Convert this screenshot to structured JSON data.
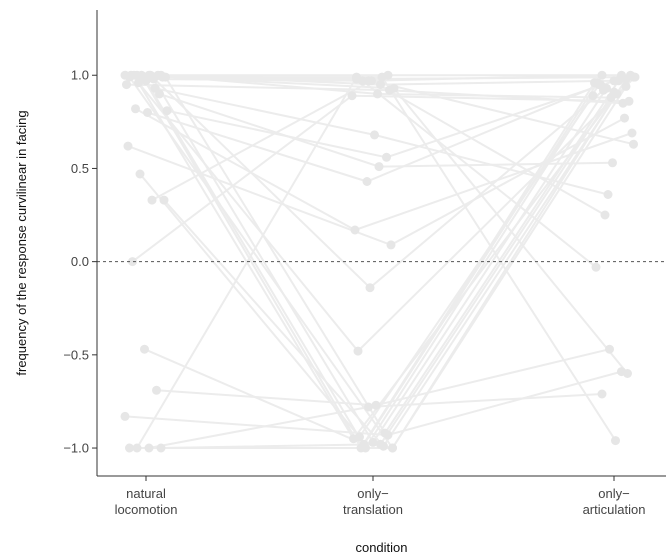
{
  "chart_data": {
    "type": "line",
    "xlabel": "condition",
    "ylabel": "frequency of the response curvilinear in facing",
    "categories": [
      {
        "line1": "natural",
        "line2": "locomotion"
      },
      {
        "line1": "only−",
        "line2": "translation"
      },
      {
        "line1": "only−",
        "line2": "articulation"
      }
    ],
    "ylim": [
      -1.15,
      1.35
    ],
    "yticks": [
      {
        "value": 1.0,
        "label": "1.0"
      },
      {
        "value": 0.5,
        "label": "0.5"
      },
      {
        "value": 0.0,
        "label": "0.0"
      },
      {
        "value": -0.5,
        "label": "−0.5"
      },
      {
        "value": -1.0,
        "label": "−1.0"
      }
    ],
    "reference_line": {
      "y": 0,
      "style": "dashed"
    },
    "grid": false,
    "legend": "none",
    "line_color": "#ececec",
    "point_color": "#e6e6e6",
    "series": [
      {
        "values": [
          1.0,
          1.0,
          1.0
        ]
      },
      {
        "values": [
          1.0,
          0.98,
          0.99
        ]
      },
      {
        "values": [
          1.0,
          0.97,
          1.0
        ]
      },
      {
        "values": [
          1.0,
          0.95,
          0.97
        ]
      },
      {
        "values": [
          0.99,
          -1.0,
          0.98
        ]
      },
      {
        "values": [
          1.0,
          -1.0,
          0.96
        ]
      },
      {
        "values": [
          0.98,
          -0.97,
          0.93
        ]
      },
      {
        "values": [
          0.99,
          -0.92,
          0.97
        ]
      },
      {
        "values": [
          1.0,
          -0.95,
          1.0
        ]
      },
      {
        "values": [
          0.97,
          -1.0,
          0.95
        ]
      },
      {
        "values": [
          1.0,
          0.9,
          0.88
        ]
      },
      {
        "values": [
          0.95,
          0.92,
          0.85
        ]
      },
      {
        "values": [
          0.96,
          -0.48,
          0.99
        ]
      },
      {
        "values": [
          1.0,
          -0.14,
          0.92
        ]
      },
      {
        "values": [
          0.99,
          0.99,
          -0.96
        ]
      },
      {
        "values": [
          1.0,
          0.93,
          -0.6
        ]
      },
      {
        "values": [
          0.98,
          0.97,
          -0.03
        ]
      },
      {
        "values": [
          0.93,
          0.68,
          0.36
        ]
      },
      {
        "values": [
          0.81,
          0.56,
          0.98
        ]
      },
      {
        "values": [
          0.82,
          0.17,
          0.69
        ]
      },
      {
        "values": [
          0.8,
          0.43,
          0.95
        ]
      },
      {
        "values": [
          0.9,
          0.51,
          0.53
        ]
      },
      {
        "values": [
          0.62,
          0.09,
          0.77
        ]
      },
      {
        "values": [
          0.47,
          -0.94,
          0.89
        ]
      },
      {
        "values": [
          0.33,
          0.97,
          0.25
        ]
      },
      {
        "values": [
          0.33,
          -0.99,
          0.9
        ]
      },
      {
        "values": [
          0.0,
          0.89,
          0.86
        ]
      },
      {
        "values": [
          -0.47,
          -0.98,
          0.96
        ]
      },
      {
        "values": [
          -0.69,
          -0.77,
          -0.47
        ]
      },
      {
        "values": [
          -0.83,
          -0.93,
          -0.59
        ]
      },
      {
        "values": [
          -1.0,
          0.99,
          0.63
        ]
      },
      {
        "values": [
          -1.0,
          -0.78,
          -0.71
        ]
      },
      {
        "values": [
          -1.0,
          -0.98,
          0.91
        ]
      },
      {
        "values": [
          -1.0,
          -1.0,
          0.94
        ]
      }
    ]
  }
}
